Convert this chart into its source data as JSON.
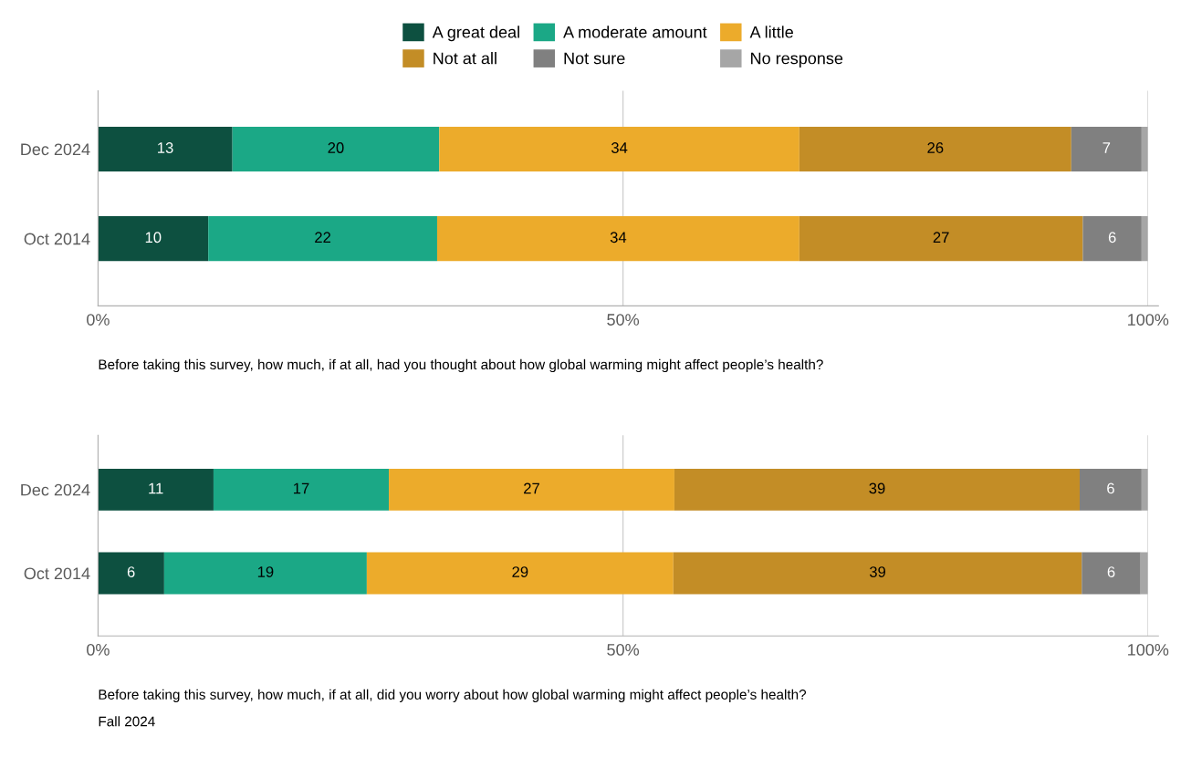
{
  "chart_data": [
    {
      "type": "bar",
      "orientation": "horizontal",
      "stacked": true,
      "categories": [
        "Dec 2024",
        "Oct 2014"
      ],
      "series": [
        {
          "name": "A great deal",
          "color": "#0d5040",
          "values": [
            12.8,
            10.5
          ],
          "value_labels": [
            "13",
            "10"
          ]
        },
        {
          "name": "A moderate amount",
          "color": "#1ba886",
          "values": [
            19.7,
            21.8
          ],
          "value_labels": [
            "20",
            "22"
          ]
        },
        {
          "name": "A little",
          "color": "#ecab2b",
          "values": [
            34.3,
            34.5
          ],
          "value_labels": [
            "34",
            "34"
          ]
        },
        {
          "name": "Not at all",
          "color": "#c38d26",
          "values": [
            25.9,
            27.0
          ],
          "value_labels": [
            "26",
            "27"
          ]
        },
        {
          "name": "Not sure",
          "color": "#808080",
          "values": [
            6.7,
            5.6
          ],
          "value_labels": [
            "7",
            "6"
          ]
        },
        {
          "name": "No response",
          "color": "#a6a6a6",
          "values": [
            0.6,
            0.6
          ],
          "value_labels": [
            null,
            null
          ]
        }
      ],
      "xlim": [
        0,
        100
      ],
      "xticks": [
        {
          "value": 0,
          "label": "0%"
        },
        {
          "value": 50,
          "label": "50%"
        },
        {
          "value": 100,
          "label": "100%"
        }
      ],
      "grid": "x",
      "legend": "top",
      "xlabel": "Before taking this survey, how much, if at all, had you thought about how global warming might affect people’s health?"
    },
    {
      "type": "bar",
      "orientation": "horizontal",
      "stacked": true,
      "categories": [
        "Dec 2024",
        "Oct 2014"
      ],
      "series": [
        {
          "color": "#0d5040",
          "values": [
            11.0,
            6.3
          ],
          "value_labels": [
            "11",
            "6"
          ]
        },
        {
          "color": "#1ba886",
          "values": [
            16.7,
            19.3
          ],
          "value_labels": [
            "17",
            "19"
          ]
        },
        {
          "color": "#ecab2b",
          "values": [
            27.2,
            29.2
          ],
          "value_labels": [
            "27",
            "29"
          ]
        },
        {
          "color": "#c38d26",
          "values": [
            38.6,
            38.9
          ],
          "value_labels": [
            "39",
            "39"
          ]
        },
        {
          "color": "#808080",
          "values": [
            5.9,
            5.6
          ],
          "value_labels": [
            "6",
            "6"
          ]
        },
        {
          "color": "#a6a6a6",
          "values": [
            0.6,
            0.7
          ],
          "value_labels": [
            null,
            null
          ]
        }
      ],
      "xlim": [
        0,
        100
      ],
      "xticks": [
        {
          "value": 0,
          "label": "0%"
        },
        {
          "value": 50,
          "label": "50%"
        },
        {
          "value": 100,
          "label": "100%"
        }
      ],
      "grid": "x",
      "xlabel": "Before taking this survey, how much, if at all, did you worry about how global warming might affect people’s health?",
      "annotations": [
        "Fall 2024"
      ]
    }
  ]
}
